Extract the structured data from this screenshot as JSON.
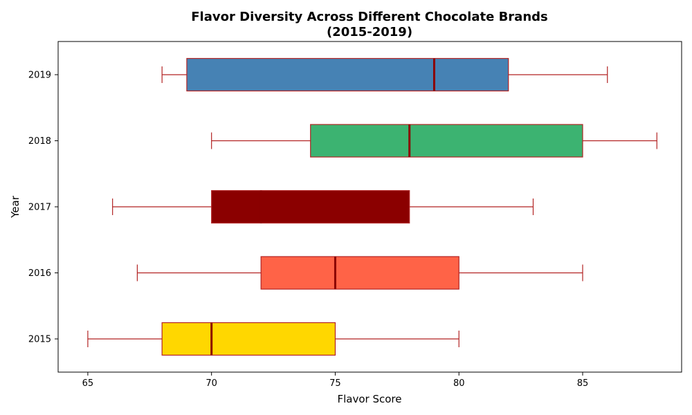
{
  "chart_data": {
    "type": "boxplot",
    "orientation": "horizontal",
    "title": "Flavor Diversity Across Different Chocolate Brands",
    "subtitle": "(2015-2019)",
    "xlabel": "Flavor Score",
    "ylabel": "Year",
    "xlim": [
      63.8,
      89.0
    ],
    "xticks": [
      65,
      70,
      75,
      80,
      85
    ],
    "grid": false,
    "edge_color": "#b22222",
    "median_color": "#8b0000",
    "series": [
      {
        "category": "2015",
        "whisker_low": 65,
        "q1": 68,
        "median": 70,
        "q3": 75,
        "whisker_high": 80,
        "color": "#ffd700"
      },
      {
        "category": "2016",
        "whisker_low": 67,
        "q1": 72,
        "median": 75,
        "q3": 80,
        "whisker_high": 85,
        "color": "#ff6347"
      },
      {
        "category": "2017",
        "whisker_low": 66,
        "q1": 70,
        "median": 72,
        "q3": 78,
        "whisker_high": 83,
        "color": "#8b0000"
      },
      {
        "category": "2018",
        "whisker_low": 70,
        "q1": 74,
        "median": 78,
        "q3": 85,
        "whisker_high": 88,
        "color": "#3cb371"
      },
      {
        "category": "2019",
        "whisker_low": 68,
        "q1": 69,
        "median": 79,
        "q3": 82,
        "whisker_high": 86,
        "color": "#4682b4"
      }
    ]
  }
}
